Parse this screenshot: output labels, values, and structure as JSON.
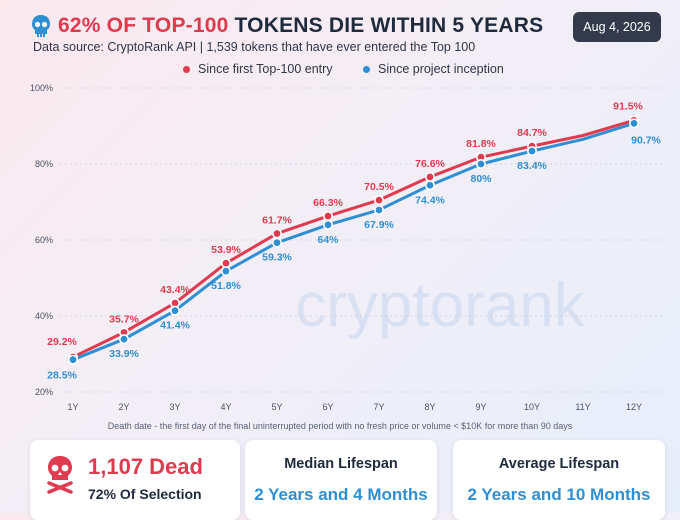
{
  "header": {
    "title_highlight": "62% OF TOP-100",
    "title_rest": "TOKENS DIE WITHIN 5 YEARS",
    "source": "Data source: CryptoRank API | 1,539 tokens that have ever entered the Top 100",
    "date": "Aug 4, 2026",
    "icon": "skull-icon"
  },
  "watermark": "cryptorank",
  "note": "Death date - the first day of the final uninterrupted period with no fresh price or volume < $10K for more than 90 days",
  "colors": {
    "red": "#e03a4f",
    "blue": "#2f8fd3",
    "text": "#1f2a3d",
    "grid": "#c9cfda"
  },
  "chart_data": {
    "type": "line",
    "categories": [
      "1Y",
      "2Y",
      "3Y",
      "4Y",
      "5Y",
      "6Y",
      "7Y",
      "8Y",
      "9Y",
      "10Y",
      "11Y",
      "12Y"
    ],
    "yticks": [
      "20%",
      "40%",
      "60%",
      "80%",
      "100%"
    ],
    "ylim": [
      20,
      100
    ],
    "grid": "horizontal",
    "legend_position": "top-center",
    "series": [
      {
        "name": "Since first Top-100 entry",
        "color": "#e03a4f",
        "values": [
          29.2,
          35.7,
          43.4,
          53.9,
          61.7,
          66.3,
          70.5,
          76.6,
          81.8,
          84.7,
          87.5,
          91.5
        ],
        "labels": [
          "29.2%",
          "35.7%",
          "43.4%",
          "53.9%",
          "61.7%",
          "66.3%",
          "70.5%",
          "76.6%",
          "81.8%",
          "84.7%",
          "",
          "91.5%"
        ]
      },
      {
        "name": "Since project inception",
        "color": "#2f8fd3",
        "values": [
          28.5,
          33.9,
          41.4,
          51.8,
          59.3,
          64.0,
          67.9,
          74.4,
          80.0,
          83.4,
          86.5,
          90.7
        ],
        "labels": [
          "28.5%",
          "33.9%",
          "41.4%",
          "51.8%",
          "59.3%",
          "64%",
          "67.9%",
          "74.4%",
          "80%",
          "83.4%",
          "",
          "90.7%"
        ]
      }
    ]
  },
  "cards": {
    "dead": {
      "count": "1,107 Dead",
      "sub": "72% Of Selection",
      "icon": "skull-crossbones-icon"
    },
    "median": {
      "title": "Median Lifespan",
      "value": "2 Years and 4 Months"
    },
    "average": {
      "title": "Average Lifespan",
      "value": "2 Years and 10 Months"
    }
  }
}
